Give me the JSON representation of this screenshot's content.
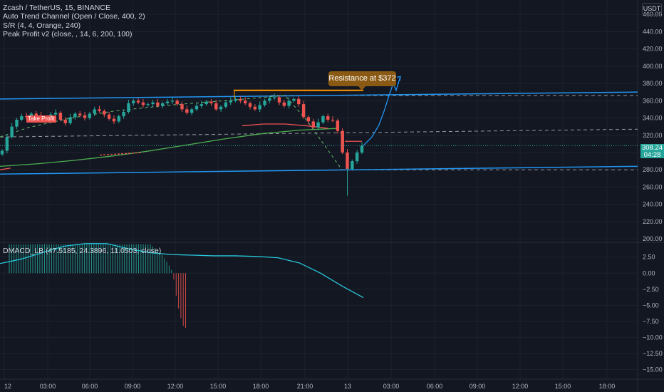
{
  "legend": {
    "symbol": "Zcash / TetherUS, 15, BINANCE",
    "indicator1": "Auto Trend Channel (Open / Close, 400, 2)",
    "indicator2": "S/R (4, 4, Orange, 240)",
    "indicator3": "Peak Profit v2 (close, , 14, 6, 200, 100)",
    "oscillator": "DMACD_LB (47.5185, 24.3896, 11.0503, close)"
  },
  "currency_badge": "USDT",
  "last_price": {
    "value": "308.24",
    "countdown": "04:28",
    "price": 308.24
  },
  "take_profit_label": "Take Profit",
  "callout": {
    "text": "Resistance at $372",
    "price": 372
  },
  "colors": {
    "background": "#131722",
    "grid": "#1e222d",
    "up": "#26a69a",
    "down": "#ef5350",
    "channel": "#2196f3",
    "resistance": "#ff9800",
    "ma_green": "#4caf50",
    "ma_red": "#ef5350",
    "dashed": "#9598a1",
    "osc_line": "#26c6da"
  },
  "chart_data": [
    {
      "type": "candlestick",
      "x_ticks": [
        "12",
        "03:00",
        "06:00",
        "09:00",
        "12:00",
        "15:00",
        "18:00",
        "21:00",
        "13",
        "03:00",
        "06:00",
        "09:00",
        "12:00",
        "15:00",
        "18:00"
      ],
      "y_ticks": [
        200,
        220,
        240,
        260,
        280,
        300,
        320,
        340,
        360,
        380,
        400,
        420,
        440,
        460
      ],
      "ylim": [
        196,
        470
      ],
      "upper_channel": {
        "start": 362,
        "end": 370
      },
      "lower_channel": {
        "start": 275,
        "end": 284
      },
      "middle_dashed": {
        "start": 318,
        "end": 327
      },
      "resistance_level": 372,
      "support_dashed": 280,
      "upper_dashed": 366,
      "projection": [
        308,
        318,
        332,
        350,
        366,
        380,
        372,
        388
      ],
      "ma_green": [
        284,
        287,
        291,
        296,
        302,
        309,
        316,
        322,
        326,
        328
      ],
      "ma_red": [
        331,
        333,
        333,
        331,
        328
      ],
      "closes": [
        302,
        318,
        330,
        338,
        342,
        341,
        345,
        343,
        340,
        339,
        344,
        346,
        338,
        334,
        341,
        345,
        343,
        340,
        345,
        350,
        348,
        344,
        339,
        336,
        342,
        347,
        357,
        360,
        358,
        355,
        356,
        358,
        354,
        357,
        359,
        360,
        356,
        350,
        346,
        350,
        354,
        356,
        359,
        357,
        350,
        353,
        358,
        360,
        362,
        360,
        357,
        353,
        350,
        355,
        360,
        363,
        364,
        358,
        354,
        360,
        362,
        356,
        341,
        336,
        329,
        335,
        342,
        338,
        337,
        325,
        300,
        281,
        290,
        300,
        308
      ]
    },
    {
      "type": "bar",
      "name": "DMACD_LB",
      "y_ticks": [
        -15.0,
        -12.5,
        -10.0,
        -7.5,
        -5.0,
        -2.5,
        0.0,
        2.5
      ],
      "y_tick_labels": [
        "−15.00",
        "−12.50",
        "−10.00",
        "−7.50",
        "−5.00",
        "−2.50",
        "0.00",
        "2.50"
      ],
      "ylim": [
        -16.5,
        4.8
      ],
      "histogram": [
        4.5,
        4.5,
        4.5,
        4.5,
        4.5,
        4.5,
        4.5,
        4.5,
        4.5,
        4.5,
        4.5,
        4.5,
        4.5,
        4.5,
        4.5,
        4.5,
        4.5,
        4.5,
        4.5,
        4.5,
        4.5,
        4.5,
        4.5,
        4.5,
        4.5,
        4.5,
        4.5,
        4.5,
        4.5,
        4.5,
        4.5,
        4.5,
        4.5,
        4.5,
        4.5,
        4.5,
        4.5,
        4.5,
        4.5,
        4.5,
        4.5,
        4.5,
        4.5,
        4.5,
        4.5,
        4.5,
        4.5,
        4.5,
        4.5,
        4.5,
        4.5,
        4.5,
        4.5,
        4.5,
        4.5,
        4.5,
        4.5,
        4.5,
        4.5,
        4.5,
        4.5,
        4.2,
        3.9,
        3.6,
        3.2,
        2.8,
        2.3,
        1.8,
        1.2,
        0.5,
        -1.0,
        -3.5,
        -5.5,
        -7.0,
        -8.2,
        -8.5
      ],
      "line": [
        1.5,
        2.2,
        3.2,
        4.2,
        4.6,
        4.6,
        3.8,
        3.2,
        2.9,
        2.8,
        2.7,
        2.7,
        2.6,
        2.4,
        1.6,
        0.0,
        -2.0,
        -3.8
      ]
    }
  ]
}
